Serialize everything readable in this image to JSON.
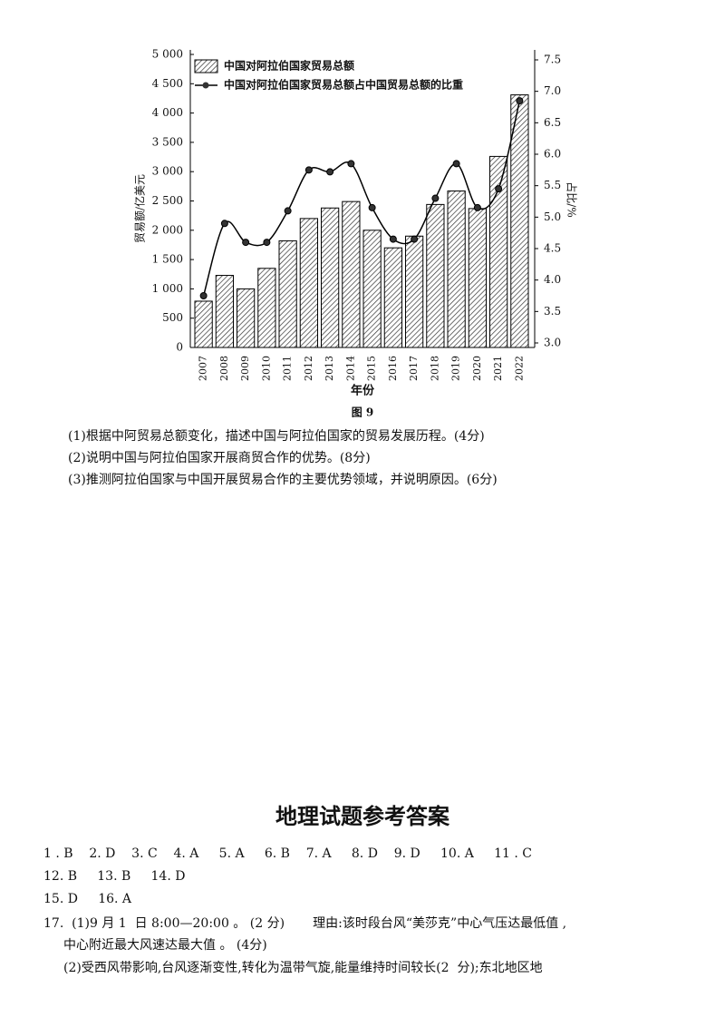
{
  "chart_data": {
    "type": "bar",
    "categories": [
      "2007",
      "2008",
      "2009",
      "2010",
      "2011",
      "2012",
      "2013",
      "2014",
      "2015",
      "2016",
      "2017",
      "2018",
      "2019",
      "2020",
      "2021",
      "2022"
    ],
    "series": [
      {
        "name": "中国对阿拉伯国家贸易总额",
        "color": "#333333",
        "values": [
          790,
          1230,
          1000,
          1350,
          1820,
          2200,
          2380,
          2490,
          2000,
          1700,
          1900,
          2440,
          2670,
          2370,
          3260,
          4310
        ]
      },
      {
        "name": "中国对阿拉伯国家贸易总额占中国贸易总额的比重",
        "type": "line",
        "axis": "y2",
        "color": "#000000",
        "values": [
          3.75,
          4.9,
          4.6,
          4.6,
          5.1,
          5.75,
          5.72,
          5.85,
          5.15,
          4.65,
          4.65,
          5.3,
          5.85,
          5.15,
          5.45,
          6.85
        ]
      }
    ],
    "x_label": "年份",
    "y_label": "贸易额/亿美元",
    "y2_label": "占比/%",
    "ylim": [
      0,
      5000
    ],
    "yticks": [
      0,
      500,
      {
        "value": 1000,
        "label": "1 000"
      },
      {
        "value": 1500,
        "label": "1 500"
      },
      {
        "value": 2000,
        "label": "2 000"
      },
      {
        "value": 2500,
        "label": "2 500"
      },
      {
        "value": 3000,
        "label": "3 000"
      },
      {
        "value": 3500,
        "label": "3 500"
      },
      {
        "value": 4000,
        "label": "4 000"
      },
      {
        "value": 4500,
        "label": "4 500"
      },
      {
        "value": 5000,
        "label": "5 000"
      }
    ],
    "y2lim": [
      3.0,
      7.5
    ],
    "y2ticks": [
      {
        "value": 3,
        "label": "3.0"
      },
      3.5,
      {
        "value": 4,
        "label": "4.0"
      },
      4.5,
      {
        "value": 5,
        "label": "5.0"
      },
      5.5,
      {
        "value": 6,
        "label": "6.0"
      },
      6.5,
      {
        "value": 7,
        "label": "7.0"
      },
      7.5
    ],
    "grid": false,
    "legend": "top-left"
  },
  "figure_caption": "图 9",
  "questions": [
    "(1)根据中阿贸易总额变化，描述中国与阿拉伯国家的贸易发展历程。(4分)",
    "(2)说明中国与阿拉伯国家开展商贸合作的优势。(8分)",
    "(3)推测阿拉伯国家与中国开展贸易合作的主要优势领域，并说明原因。(6分)"
  ],
  "answers": {
    "title": "地理试题参考答案",
    "lines": [
      "1 . B    2. D    3. C    4. A     5. A     6. B    7. A     8. D    9. D     10. A     11 . C",
      "12. B     13. B     14. D",
      "15. D     16. A",
      "17.  (1)9 月 1  日 8:00—20:00 。 (2 分)       理由:该时段台风“美莎克”中心气压达最低值 ,",
      "中心附近最大风速达最大值 。 (4分)",
      "(2)受西风带影响,台风逐渐变性,转化为温带气旋,能量维持时间较长(2  分);东北地区地"
    ]
  }
}
